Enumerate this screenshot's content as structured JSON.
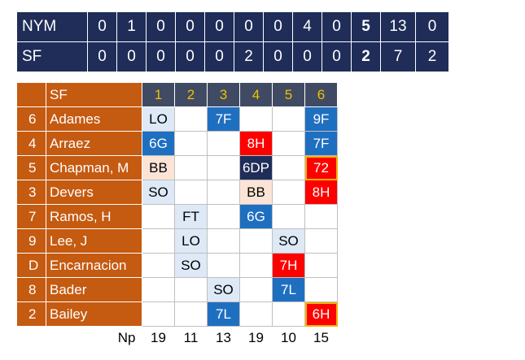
{
  "linescore": {
    "teams": [
      {
        "name": "NYM",
        "innings": [
          "0",
          "1",
          "0",
          "0",
          "0",
          "0",
          "0",
          "4",
          "0"
        ],
        "runs": "5",
        "hits": "13",
        "errors": "0"
      },
      {
        "name": "SF",
        "innings": [
          "0",
          "0",
          "0",
          "0",
          "0",
          "2",
          "0",
          "0",
          "0"
        ],
        "runs": "2",
        "hits": "7",
        "errors": "2"
      }
    ]
  },
  "scorecard": {
    "team": "SF",
    "innings": [
      "1",
      "2",
      "3",
      "4",
      "5",
      "6"
    ],
    "np_label": "Np",
    "pitch_counts": [
      "19",
      "11",
      "13",
      "19",
      "10",
      "15"
    ],
    "colors": {
      "orange": "#c55a11",
      "navy": "#1f2d58",
      "blue": "#1f6fc1",
      "red": "#ff0000",
      "gold": "#f0c000"
    },
    "batters": [
      {
        "pos": "6",
        "name": "Adames",
        "results": [
          {
            "text": "LO",
            "kind": "out"
          },
          {
            "text": "",
            "kind": ""
          },
          {
            "text": "7F",
            "kind": "fly"
          },
          {
            "text": "",
            "kind": ""
          },
          {
            "text": "",
            "kind": ""
          },
          {
            "text": "9F",
            "kind": "fly"
          }
        ]
      },
      {
        "pos": "4",
        "name": "Arraez",
        "results": [
          {
            "text": "6G",
            "kind": "fly"
          },
          {
            "text": "",
            "kind": ""
          },
          {
            "text": "",
            "kind": ""
          },
          {
            "text": "8H",
            "kind": "hit"
          },
          {
            "text": "",
            "kind": ""
          },
          {
            "text": "7F",
            "kind": "fly"
          }
        ]
      },
      {
        "pos": "5",
        "name": "Chapman, M",
        "results": [
          {
            "text": "BB",
            "kind": "walk"
          },
          {
            "text": "",
            "kind": ""
          },
          {
            "text": "",
            "kind": ""
          },
          {
            "text": "6DP",
            "kind": "dp"
          },
          {
            "text": "",
            "kind": ""
          },
          {
            "text": "72",
            "kind": "hit-cur"
          }
        ]
      },
      {
        "pos": "3",
        "name": "Devers",
        "results": [
          {
            "text": "SO",
            "kind": "out"
          },
          {
            "text": "",
            "kind": ""
          },
          {
            "text": "",
            "kind": ""
          },
          {
            "text": "BB",
            "kind": "walk"
          },
          {
            "text": "",
            "kind": ""
          },
          {
            "text": "8H",
            "kind": "hit"
          }
        ]
      },
      {
        "pos": "7",
        "name": "Ramos, H",
        "results": [
          {
            "text": "",
            "kind": ""
          },
          {
            "text": "FT",
            "kind": "out"
          },
          {
            "text": "",
            "kind": ""
          },
          {
            "text": "6G",
            "kind": "fly"
          },
          {
            "text": "",
            "kind": ""
          },
          {
            "text": "",
            "kind": ""
          }
        ]
      },
      {
        "pos": "9",
        "name": "Lee, J",
        "results": [
          {
            "text": "",
            "kind": ""
          },
          {
            "text": "LO",
            "kind": "out"
          },
          {
            "text": "",
            "kind": ""
          },
          {
            "text": "",
            "kind": ""
          },
          {
            "text": "SO",
            "kind": "out"
          },
          {
            "text": "",
            "kind": ""
          }
        ]
      },
      {
        "pos": "D",
        "name": "Encarnacion",
        "results": [
          {
            "text": "",
            "kind": ""
          },
          {
            "text": "SO",
            "kind": "out"
          },
          {
            "text": "",
            "kind": ""
          },
          {
            "text": "",
            "kind": ""
          },
          {
            "text": "7H",
            "kind": "hit"
          },
          {
            "text": "",
            "kind": ""
          }
        ]
      },
      {
        "pos": "8",
        "name": "Bader",
        "results": [
          {
            "text": "",
            "kind": ""
          },
          {
            "text": "",
            "kind": ""
          },
          {
            "text": "SO",
            "kind": "out"
          },
          {
            "text": "",
            "kind": ""
          },
          {
            "text": "7L",
            "kind": "fly"
          },
          {
            "text": "",
            "kind": ""
          }
        ]
      },
      {
        "pos": "2",
        "name": "Bailey",
        "results": [
          {
            "text": "",
            "kind": ""
          },
          {
            "text": "",
            "kind": ""
          },
          {
            "text": "7L",
            "kind": "fly"
          },
          {
            "text": "",
            "kind": ""
          },
          {
            "text": "",
            "kind": ""
          },
          {
            "text": "6H",
            "kind": "hit-cur"
          }
        ]
      }
    ]
  }
}
